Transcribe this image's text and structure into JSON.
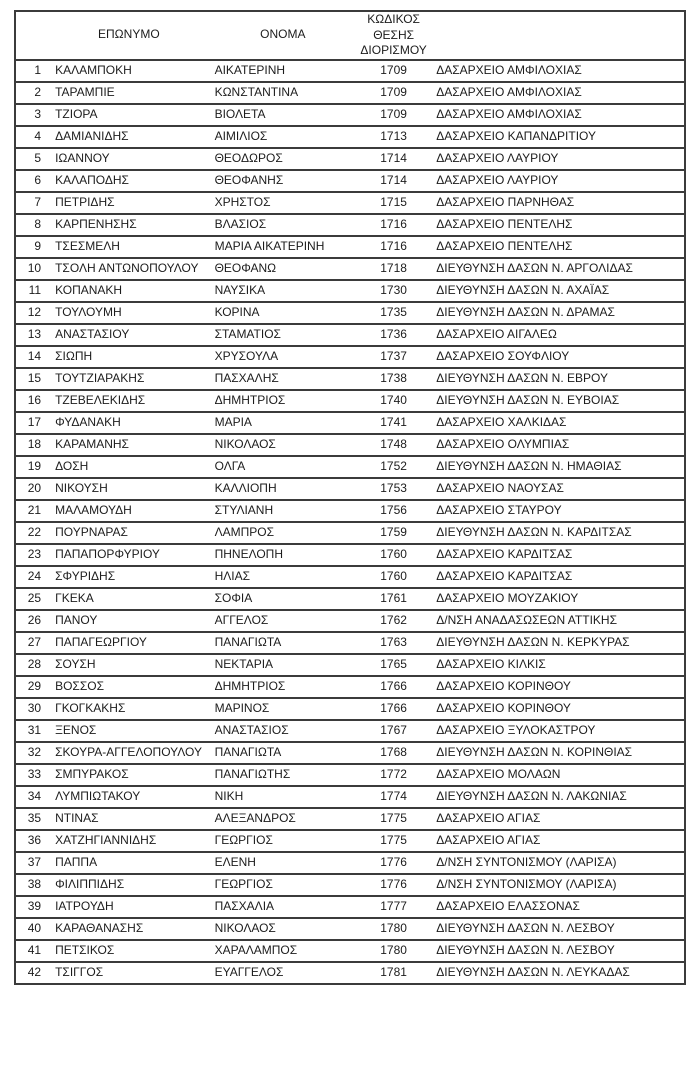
{
  "headers": {
    "index": "",
    "surname": "ΕΠΩΝΥΜΟ",
    "name": "ΟΝΟΜΑ",
    "code": "ΚΩΔΙΚΟΣ\nΘΕΣΗΣ\nΔΙΟΡΙΣΜΟΥ",
    "office": ""
  },
  "rows": [
    [
      "1",
      "ΚΑΛΑΜΠΟΚΗ",
      "ΑΙΚΑΤΕΡΙΝΗ",
      "1709",
      "ΔΑΣΑΡΧΕΙΟ ΑΜΦΙΛΟΧΙΑΣ"
    ],
    [
      "2",
      "ΤΑΡΑΜΠΙΕ",
      "ΚΩΝΣΤΑΝΤΙΝΑ",
      "1709",
      "ΔΑΣΑΡΧΕΙΟ ΑΜΦΙΛΟΧΙΑΣ"
    ],
    [
      "3",
      "ΤΖΙΟΡΑ",
      "ΒΙΟΛΕΤΑ",
      "1709",
      "ΔΑΣΑΡΧΕΙΟ ΑΜΦΙΛΟΧΙΑΣ"
    ],
    [
      "4",
      "ΔΑΜΙΑΝΙΔΗΣ",
      "ΑΙΜΙΛΙΟΣ",
      "1713",
      "ΔΑΣΑΡΧΕΙΟ ΚΑΠΑΝΔΡΙΤΙΟΥ"
    ],
    [
      "5",
      "ΙΩΑΝΝΟΥ",
      "ΘΕΟΔΩΡΟΣ",
      "1714",
      "ΔΑΣΑΡΧΕΙΟ ΛΑΥΡΙΟΥ"
    ],
    [
      "6",
      "ΚΑΛΑΠΟΔΗΣ",
      "ΘΕΟΦΑΝΗΣ",
      "1714",
      "ΔΑΣΑΡΧΕΙΟ ΛΑΥΡΙΟΥ"
    ],
    [
      "7",
      "ΠΕΤΡΙΔΗΣ",
      "ΧΡΗΣΤΟΣ",
      "1715",
      "ΔΑΣΑΡΧΕΙΟ ΠΑΡΝΗΘΑΣ"
    ],
    [
      "8",
      "ΚΑΡΠΕΝΗΣΗΣ",
      "ΒΛΑΣΙΟΣ",
      "1716",
      "ΔΑΣΑΡΧΕΙΟ ΠΕΝΤΕΛΗΣ"
    ],
    [
      "9",
      "ΤΣΕΣΜΕΛΗ",
      "ΜΑΡΙΑ ΑΙΚΑΤΕΡΙΝΗ",
      "1716",
      "ΔΑΣΑΡΧΕΙΟ ΠΕΝΤΕΛΗΣ"
    ],
    [
      "10",
      "ΤΣΟΛΗ ΑΝΤΩΝΟΠΟΥΛΟΥ",
      "ΘΕΟΦΑΝΩ",
      "1718",
      "ΔΙΕΥΘΥΝΣΗ ΔΑΣΩΝ Ν. ΑΡΓΟΛΙΔΑΣ"
    ],
    [
      "11",
      "ΚΟΠΑΝΑΚΗ",
      "ΝΑΥΣΙΚΑ",
      "1730",
      "ΔΙΕΥΘΥΝΣΗ ΔΑΣΩΝ Ν. ΑΧΑΪΑΣ"
    ],
    [
      "12",
      "ΤΟΥΛΟΥΜΗ",
      "ΚΟΡΙΝΑ",
      "1735",
      "ΔΙΕΥΘΥΝΣΗ ΔΑΣΩΝ Ν. ΔΡΑΜΑΣ"
    ],
    [
      "13",
      "ΑΝΑΣΤΑΣΙΟΥ",
      "ΣΤΑΜΑΤΙΟΣ",
      "1736",
      "ΔΑΣΑΡΧΕΙΟ ΑΙΓΑΛΕΩ"
    ],
    [
      "14",
      "ΣΙΩΠΗ",
      "ΧΡΥΣΟΥΛΑ",
      "1737",
      "ΔΑΣΑΡΧΕΙΟ ΣΟΥΦΛΙΟΥ"
    ],
    [
      "15",
      "ΤΟΥΤΖΙΑΡΑΚΗΣ",
      "ΠΑΣΧΑΛΗΣ",
      "1738",
      "ΔΙΕΥΘΥΝΣΗ ΔΑΣΩΝ Ν. ΕΒΡΟΥ"
    ],
    [
      "16",
      "ΤΖΕΒΕΛΕΚΙΔΗΣ",
      "ΔΗΜΗΤΡΙΟΣ",
      "1740",
      "ΔΙΕΥΘΥΝΣΗ ΔΑΣΩΝ Ν. ΕΥΒΟΙΑΣ"
    ],
    [
      "17",
      "ΦΥΔΑΝΑΚΗ",
      "ΜΑΡΙΑ",
      "1741",
      "ΔΑΣΑΡΧΕΙΟ ΧΑΛΚΙΔΑΣ"
    ],
    [
      "18",
      "ΚΑΡΑΜΑΝΗΣ",
      "ΝΙΚΟΛΑΟΣ",
      "1748",
      "ΔΑΣΑΡΧΕΙΟ ΟΛΥΜΠΙΑΣ"
    ],
    [
      "19",
      "ΔΟΣΗ",
      "ΟΛΓΑ",
      "1752",
      "ΔΙΕΥΘΥΝΣΗ ΔΑΣΩΝ Ν. ΗΜΑΘΙΑΣ"
    ],
    [
      "20",
      "ΝΙΚΟΥΣΗ",
      "ΚΑΛΛΙΟΠΗ",
      "1753",
      "ΔΑΣΑΡΧΕΙΟ ΝΑΟΥΣΑΣ"
    ],
    [
      "21",
      "ΜΑΛΑΜΟΥΔΗ",
      "ΣΤΥΛΙΑΝΗ",
      "1756",
      "ΔΑΣΑΡΧΕΙΟ ΣΤΑΥΡΟΥ"
    ],
    [
      "22",
      "ΠΟΥΡΝΑΡΑΣ",
      "ΛΑΜΠΡΟΣ",
      "1759",
      "ΔΙΕΥΘΥΝΣΗ ΔΑΣΩΝ Ν. ΚΑΡΔΙΤΣΑΣ"
    ],
    [
      "23",
      "ΠΑΠΑΠΟΡΦΥΡΙΟΥ",
      "ΠΗΝΕΛΟΠΗ",
      "1760",
      "ΔΑΣΑΡΧΕΙΟ ΚΑΡΔΙΤΣΑΣ"
    ],
    [
      "24",
      "ΣΦΥΡΙΔΗΣ",
      "ΗΛΙΑΣ",
      "1760",
      "ΔΑΣΑΡΧΕΙΟ ΚΑΡΔΙΤΣΑΣ"
    ],
    [
      "25",
      "ΓΚΕΚΑ",
      "ΣΟΦΙΑ",
      "1761",
      "ΔΑΣΑΡΧΕΙΟ ΜΟΥΖΑΚΙΟΥ"
    ],
    [
      "26",
      "ΠΑΝΟΥ",
      "ΑΓΓΕΛΟΣ",
      "1762",
      "Δ/ΝΣΗ ΑΝΑΔΑΣΩΣΕΩΝ ΑΤΤΙΚΗΣ"
    ],
    [
      "27",
      "ΠΑΠΑΓΕΩΡΓΙΟΥ",
      "ΠΑΝΑΓΙΩΤΑ",
      "1763",
      "ΔΙΕΥΘΥΝΣΗ ΔΑΣΩΝ Ν. ΚΕΡΚΥΡΑΣ"
    ],
    [
      "28",
      "ΣΟΥΣΗ",
      "ΝΕΚΤΑΡΙΑ",
      "1765",
      "ΔΑΣΑΡΧΕΙΟ ΚΙΛΚΙΣ"
    ],
    [
      "29",
      "ΒΟΣΣΟΣ",
      "ΔΗΜΗΤΡΙΟΣ",
      "1766",
      "ΔΑΣΑΡΧΕΙΟ ΚΟΡΙΝΘΟΥ"
    ],
    [
      "30",
      "ΓΚΟΓΚΑΚΗΣ",
      "ΜΑΡΙΝΟΣ",
      "1766",
      "ΔΑΣΑΡΧΕΙΟ ΚΟΡΙΝΘΟΥ"
    ],
    [
      "31",
      "ΞΕΝΟΣ",
      "ΑΝΑΣΤΑΣΙΟΣ",
      "1767",
      "ΔΑΣΑΡΧΕΙΟ ΞΥΛΟΚΑΣΤΡΟΥ"
    ],
    [
      "32",
      "ΣΚΟΥΡΑ-ΑΓΓΕΛΟΠΟΥΛΟΥ",
      "ΠΑΝΑΓΙΩΤΑ",
      "1768",
      "ΔΙΕΥΘΥΝΣΗ ΔΑΣΩΝ Ν. ΚΟΡΙΝΘΙΑΣ"
    ],
    [
      "33",
      "ΣΜΠΥΡΑΚΟΣ",
      "ΠΑΝΑΓΙΩΤΗΣ",
      "1772",
      "ΔΑΣΑΡΧΕΙΟ ΜΟΛΑΩΝ"
    ],
    [
      "34",
      "ΛΥΜΠΙΩΤΑΚΟΥ",
      "ΝΙΚΗ",
      "1774",
      "ΔΙΕΥΘΥΝΣΗ ΔΑΣΩΝ Ν. ΛΑΚΩΝΙΑΣ"
    ],
    [
      "35",
      "ΝΤΙΝΑΣ",
      "ΑΛΕΞΑΝΔΡΟΣ",
      "1775",
      "ΔΑΣΑΡΧΕΙΟ ΑΓΙΑΣ"
    ],
    [
      "36",
      "ΧΑΤΖΗΓΙΑΝΝΙΔΗΣ",
      "ΓΕΩΡΓΙΟΣ",
      "1775",
      "ΔΑΣΑΡΧΕΙΟ ΑΓΙΑΣ"
    ],
    [
      "37",
      "ΠΑΠΠΑ",
      "ΕΛΕΝΗ",
      "1776",
      "Δ/ΝΣΗ ΣΥΝΤΟΝΙΣΜΟΥ (ΛΑΡΙΣΑ)"
    ],
    [
      "38",
      "ΦΙΛΙΠΠΙΔΗΣ",
      "ΓΕΩΡΓΙΟΣ",
      "1776",
      "Δ/ΝΣΗ ΣΥΝΤΟΝΙΣΜΟΥ (ΛΑΡΙΣΑ)"
    ],
    [
      "39",
      "ΙΑΤΡΟΥΔΗ",
      "ΠΑΣΧΑΛΙΑ",
      "1777",
      "ΔΑΣΑΡΧΕΙΟ ΕΛΑΣΣΟΝΑΣ"
    ],
    [
      "40",
      "ΚΑΡΑΘΑΝΑΣΗΣ",
      "ΝΙΚΟΛΑΟΣ",
      "1780",
      "ΔΙΕΥΘΥΝΣΗ ΔΑΣΩΝ Ν. ΛΕΣΒΟΥ"
    ],
    [
      "41",
      "ΠΕΤΣΙΚΟΣ",
      "ΧΑΡΑΛΑΜΠΟΣ",
      "1780",
      "ΔΙΕΥΘΥΝΣΗ ΔΑΣΩΝ Ν. ΛΕΣΒΟΥ"
    ],
    [
      "42",
      "ΤΣΙΓΓΟΣ",
      "ΕΥΑΓΓΕΛΟΣ",
      "1781",
      "ΔΙΕΥΘΥΝΣΗ ΔΑΣΩΝ Ν. ΛΕΥΚΑΔΑΣ"
    ]
  ],
  "colors": {
    "text": "#1c1c1c",
    "border": "#3b3b3b",
    "background": "#ffffff"
  }
}
